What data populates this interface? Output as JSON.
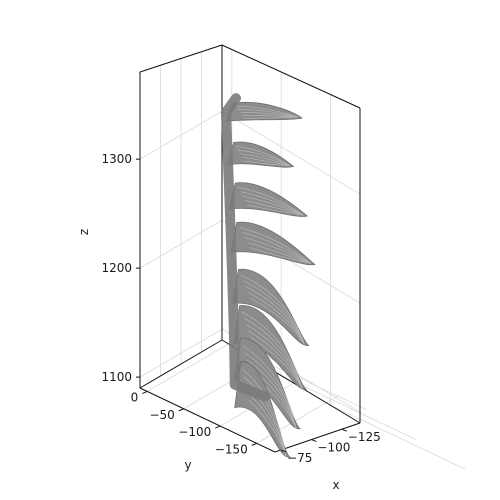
{
  "chart_data": {
    "type": "surface3d",
    "title": "",
    "xlabel": "x",
    "ylabel": "y",
    "zlabel": "z",
    "x_ticks": [
      -125,
      -100,
      -75
    ],
    "y_ticks": [
      0,
      -50,
      -100,
      -150
    ],
    "z_ticks": [
      1100,
      1200,
      1300
    ],
    "xlim": [
      -140,
      -70
    ],
    "ylim": [
      -175,
      10
    ],
    "zlim": [
      1090,
      1380
    ],
    "grid": true,
    "surface_color": "#8c8c8c",
    "series": [
      {
        "values": [
          {
            "z": 1345,
            "y": -20,
            "x": -125,
            "len": 70
          },
          {
            "z": 1307,
            "y": -25,
            "x": -120,
            "len": 60
          },
          {
            "z": 1268,
            "y": -30,
            "x": -112,
            "len": 72
          },
          {
            "z": 1230,
            "y": -38,
            "x": -105,
            "len": 78
          },
          {
            "z": 1185,
            "y": -50,
            "x": -98,
            "len": 100
          },
          {
            "z": 1150,
            "y": -62,
            "x": -92,
            "len": 95
          },
          {
            "z": 1118,
            "y": -78,
            "x": -88,
            "len": 85
          },
          {
            "z": 1095,
            "y": -95,
            "x": -85,
            "len": 70
          }
        ]
      }
    ]
  }
}
